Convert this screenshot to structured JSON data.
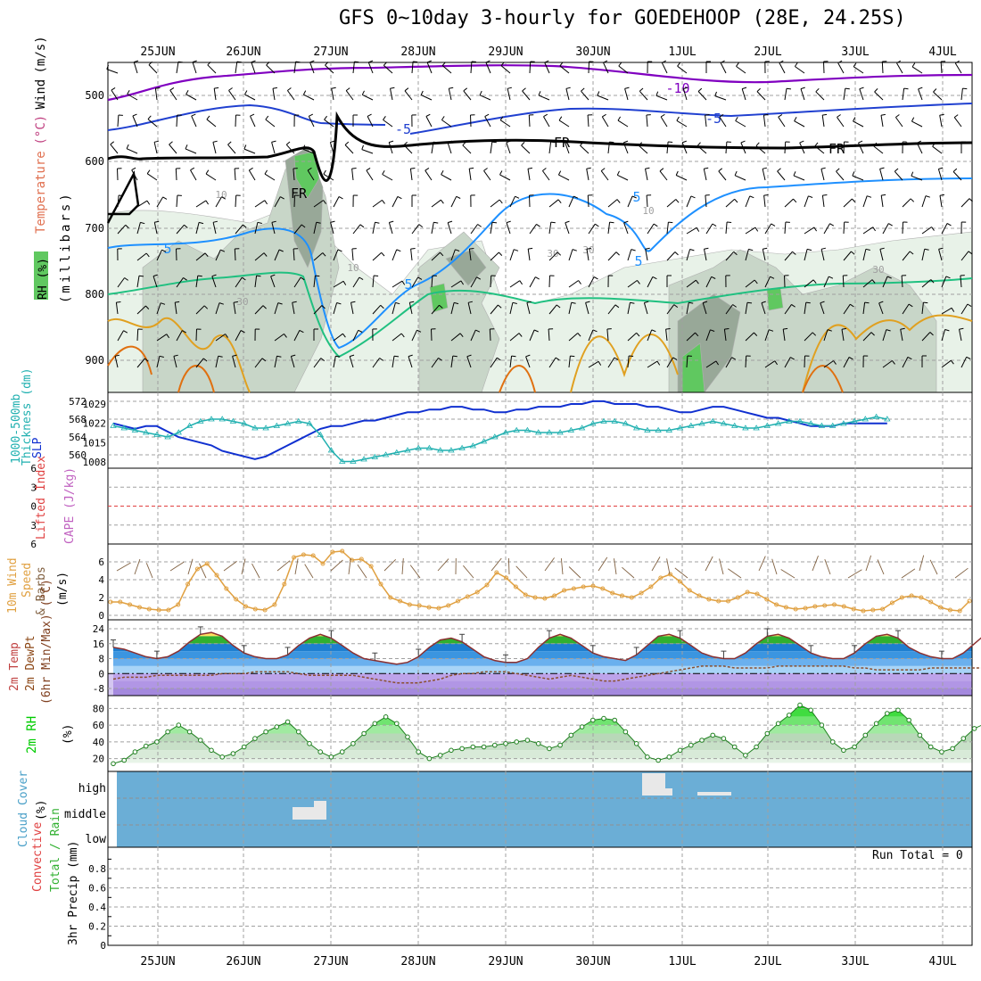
{
  "header": {
    "title": "GFS 0~10day 3-hourly for GOEDEHOOP (28E, 24.25S)"
  },
  "colors": {
    "temp_m10": "#8000c0",
    "temp_m5": "#2040d0",
    "temp_fr": "#000000",
    "temp_p5": "#1e90ff",
    "temp_p10": "#20c080",
    "temp_p15": "#e0a020",
    "temp_p20": "#e07010",
    "rh_light": "#e8f2e8",
    "rh_mid": "#c8d6c8",
    "rh_dark": "#98a898",
    "rh_green": "#60c860",
    "slp": "#1030d0",
    "thickness": "#20b0b0",
    "li": "#e04040",
    "cape": "#c060c0",
    "wind_speed": "#e0a040",
    "barb": "#806040",
    "rh2m": "#00cc00",
    "cloud_bg": "#6baed6",
    "cloud_fill": "#e8e8e8"
  },
  "chart_data": [
    {
      "panel": "upper-air",
      "type": "heatmap",
      "dates": [
        "25JUN",
        "26JUN",
        "27JUN",
        "28JUN",
        "29JUN",
        "30JUN",
        "1JUL",
        "2JUL",
        "3JUL",
        "4JUL"
      ],
      "y_ticks": [
        500,
        600,
        700,
        800,
        900
      ],
      "ylabel_left": [
        "Temperature",
        "(°C)",
        "Wind",
        "(m/s)"
      ],
      "ylabel_unit": "(millibars)",
      "rh_label": "RH (%)",
      "contour_labels": [
        "-10",
        "-5",
        "-5",
        "FR",
        "FR",
        "FR",
        "5",
        "5",
        "5",
        "5",
        "10",
        "10",
        "10",
        "30",
        "30",
        "30",
        "30"
      ]
    },
    {
      "panel": "slp-thickness",
      "type": "line",
      "ylabel": [
        "1000-500mb",
        "Thickness (dm)",
        "SLP"
      ],
      "left_ticks": [
        560,
        564,
        568,
        572
      ],
      "right_ticks": [
        1008,
        1015,
        1022,
        1029
      ],
      "series": [
        {
          "name": "SLP",
          "values": [
            1022,
            1021,
            1020,
            1021,
            1021,
            1019,
            1017,
            1016,
            1015,
            1014,
            1012,
            1011,
            1010,
            1009,
            1010,
            1012,
            1014,
            1016,
            1018,
            1020,
            1021,
            1021,
            1022,
            1023,
            1023,
            1024,
            1025,
            1026,
            1026,
            1027,
            1027,
            1028,
            1028,
            1027,
            1027,
            1026,
            1026,
            1027,
            1027,
            1028,
            1028,
            1028,
            1029,
            1029,
            1030,
            1030,
            1029,
            1029,
            1029,
            1028,
            1028,
            1027,
            1026,
            1026,
            1027,
            1028,
            1028,
            1027,
            1026,
            1025,
            1024,
            1024,
            1023,
            1022,
            1021,
            1021,
            1021,
            1022,
            1022,
            1022,
            1022,
            1022
          ]
        },
        {
          "name": "Thickness",
          "values": [
            566.5,
            566,
            565.5,
            565,
            564.5,
            564,
            565,
            566.5,
            567.5,
            568,
            568,
            567.5,
            567,
            566,
            566,
            566.5,
            567,
            567.5,
            567,
            564.5,
            561,
            558.5,
            558.5,
            559,
            559.5,
            560,
            560.5,
            561,
            561.5,
            561.5,
            561,
            561,
            561.5,
            562,
            563,
            564,
            565,
            565.5,
            565.5,
            565,
            565,
            565,
            565.5,
            566,
            567,
            567.5,
            567.5,
            567,
            566,
            565.5,
            565.5,
            565.5,
            566,
            566.5,
            567,
            567.5,
            567,
            566.5,
            566,
            566,
            566.5,
            567,
            567.5,
            567.5,
            567,
            566.5,
            566.5,
            567,
            567.5,
            568,
            568.5,
            568
          ]
        }
      ]
    },
    {
      "panel": "li-cape",
      "type": "line",
      "ylabel": [
        "Lifted Index",
        "CAPE (J/kg)"
      ],
      "y_ticks": [
        "6",
        "3",
        "0",
        "3",
        "6"
      ]
    },
    {
      "panel": "wind10m",
      "type": "line",
      "ylabel": [
        "10m Wind",
        "Speed",
        "& Barbs",
        "(m/s)"
      ],
      "y_ticks": [
        0,
        2,
        4,
        6
      ],
      "series": [
        {
          "name": "10m Wind Speed",
          "values": [
            1.5,
            1.5,
            1.2,
            0.9,
            0.7,
            0.6,
            0.6,
            1.2,
            3.5,
            5.2,
            5.8,
            4.5,
            3.0,
            1.8,
            1.0,
            0.7,
            0.6,
            1.2,
            3.5,
            6.5,
            6.8,
            6.7,
            5.8,
            7.1,
            7.2,
            6.2,
            6.3,
            5.5,
            3.5,
            2.0,
            1.6,
            1.2,
            1.1,
            0.9,
            0.8,
            1.1,
            1.6,
            2.1,
            2.6,
            3.4,
            4.8,
            4.2,
            3.2,
            2.3,
            2.0,
            1.9,
            2.2,
            2.8,
            3.0,
            3.2,
            3.3,
            3.0,
            2.5,
            2.2,
            2.0,
            2.5,
            3.2,
            4.2,
            4.6,
            3.8,
            2.8,
            2.2,
            1.8,
            1.6,
            1.6,
            2.0,
            2.6,
            2.4,
            1.8,
            1.2,
            0.9,
            0.7,
            0.8,
            1.0,
            1.1,
            1.2,
            1.0,
            0.7,
            0.5,
            0.6,
            0.7,
            1.4,
            2.0,
            2.2,
            2.0,
            1.5,
            0.9,
            0.6,
            0.5,
            1.6
          ]
        }
      ]
    },
    {
      "panel": "temp2m",
      "type": "area",
      "ylabel": [
        "2m Temp",
        "2m DewPt",
        "(6hr Min/Max) (°C)"
      ],
      "y_ticks": [
        24,
        16,
        8,
        0,
        -8
      ],
      "series": [
        {
          "name": "2m Temp",
          "values": [
            14,
            13,
            11,
            9,
            8,
            9,
            12,
            17,
            21,
            22,
            20,
            15,
            11,
            9,
            8,
            8,
            10,
            15,
            19,
            21,
            19,
            15,
            11,
            8,
            7,
            6,
            5,
            6,
            9,
            14,
            18,
            19,
            17,
            13,
            9,
            7,
            6,
            6,
            8,
            14,
            19,
            21,
            19,
            15,
            11,
            9,
            8,
            7,
            10,
            15,
            20,
            21,
            19,
            15,
            11,
            9,
            8,
            8,
            11,
            16,
            20,
            21,
            19,
            15,
            11,
            9,
            8,
            8,
            11,
            16,
            20,
            21,
            19,
            14,
            11,
            9,
            8,
            8,
            11,
            16,
            21,
            22,
            19,
            15,
            11,
            9,
            8,
            8,
            12
          ]
        },
        {
          "name": "2m DewPt",
          "values": [
            -3,
            -2,
            -2,
            -2,
            -1,
            -1,
            -1,
            -1,
            -1,
            -1,
            0,
            0,
            0,
            1,
            1,
            1,
            1,
            0,
            -1,
            -1,
            -1,
            -1,
            -1,
            -2,
            -3,
            -4,
            -5,
            -5,
            -5,
            -4,
            -3,
            -1,
            0,
            0,
            1,
            1,
            1,
            0,
            -1,
            -2,
            -3,
            -2,
            -1,
            -2,
            -3,
            -4,
            -4,
            -3,
            -2,
            -1,
            0,
            1,
            2,
            3,
            4,
            4,
            4,
            3,
            3,
            3,
            3,
            4,
            4,
            4,
            4,
            4,
            4,
            4,
            3,
            3,
            2,
            2,
            2,
            2,
            2,
            3,
            3,
            3,
            3,
            3,
            3
          ]
        }
      ]
    },
    {
      "panel": "rh2m",
      "type": "area",
      "ylabel": [
        "2m RH",
        "(%)"
      ],
      "y_ticks": [
        20,
        40,
        60,
        80
      ],
      "series": [
        {
          "name": "2m RH",
          "values": [
            14,
            18,
            28,
            35,
            40,
            52,
            60,
            52,
            42,
            30,
            22,
            26,
            34,
            44,
            52,
            58,
            64,
            52,
            38,
            28,
            22,
            28,
            38,
            50,
            62,
            70,
            62,
            46,
            28,
            20,
            24,
            30,
            32,
            34,
            34,
            36,
            38,
            40,
            42,
            38,
            32,
            36,
            48,
            58,
            66,
            68,
            66,
            52,
            38,
            22,
            18,
            22,
            30,
            36,
            42,
            48,
            44,
            34,
            24,
            34,
            50,
            62,
            72,
            84,
            78,
            60,
            40,
            30,
            34,
            48,
            62,
            74,
            78,
            66,
            48,
            34,
            28,
            32,
            44,
            56,
            62,
            66,
            58,
            42,
            30,
            26,
            36,
            52,
            64,
            68
          ]
        }
      ]
    },
    {
      "panel": "cloud",
      "type": "bar",
      "ylabel": [
        "Cloud Cover",
        "(%)"
      ],
      "y_ticks": [
        "high",
        "middle",
        "low"
      ]
    },
    {
      "panel": "precip",
      "type": "bar",
      "ylabel": [
        "3hr Precip (mm)",
        "Total / Rain",
        "Convective"
      ],
      "y_ticks": [
        0,
        0.2,
        0.4,
        0.6,
        0.8
      ],
      "run_total": "Run Total = 0"
    }
  ]
}
